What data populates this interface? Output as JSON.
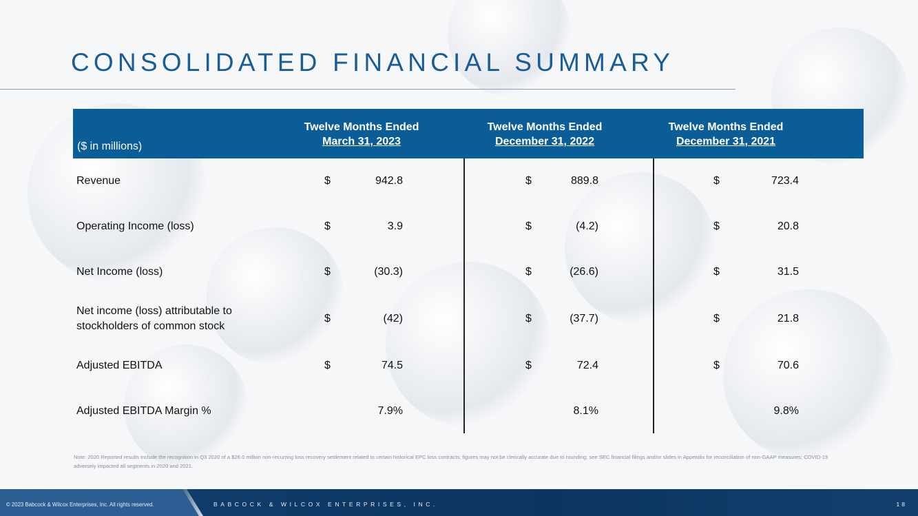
{
  "slide": {
    "title": "CONSOLIDATED FINANCIAL SUMMARY",
    "units_label": "($ in millions)",
    "page_number": "18"
  },
  "columns": [
    {
      "line1": "Twelve Months Ended",
      "line2": "March 31, 2023"
    },
    {
      "line1": "Twelve Months Ended",
      "line2": "December 31, 2022"
    },
    {
      "line1": "Twelve Months Ended",
      "line2": "December 31, 2021"
    }
  ],
  "rows": [
    {
      "label": "Revenue",
      "currency": [
        "$",
        "$",
        "$"
      ],
      "values": [
        "942.8",
        "889.8",
        "723.4"
      ]
    },
    {
      "label": "Operating Income (loss)",
      "currency": [
        "$",
        "$",
        "$"
      ],
      "values": [
        "3.9",
        "(4.2)",
        "20.8"
      ]
    },
    {
      "label": "Net Income (loss)",
      "currency": [
        "$",
        "$",
        "$"
      ],
      "values": [
        "(30.3)",
        "(26.6)",
        "31.5"
      ]
    },
    {
      "label_line1": "Net income (loss) attributable to",
      "label_line2": "stockholders of common stock",
      "currency": [
        "$",
        "$",
        "$"
      ],
      "values": [
        "(42)",
        "(37.7)",
        "21.8"
      ]
    },
    {
      "label": "Adjusted EBITDA",
      "currency": [
        "$",
        "$",
        "$"
      ],
      "values": [
        "74.5",
        "72.4",
        "70.6"
      ]
    },
    {
      "label": "Adjusted EBITDA Margin %",
      "values": [
        "7.9%",
        "8.1%",
        "9.8%"
      ]
    }
  ],
  "note": "Note: 2020 Reported results include the recognition in Q3 2020 of a $26.0 million non-recurring loss recovery settlement related to certain historical EPC loss contracts; figures may not be clerically accurate due to rounding; see SEC financial filings and/or slides in Appendix for reconciliation of non-GAAP measures; COVID-19 adversely impacted all segments in 2020 and 2021.",
  "footer": {
    "copyright": "© 2023 Babcock & Wilcox Enterprises, Inc. All rights reserved.",
    "company": "BABCOCK & WILCOX ENTERPRISES, INC."
  },
  "colors": {
    "title": "#1a5d96",
    "header_bar": "#0b5d98",
    "footer": "#0d3560"
  }
}
